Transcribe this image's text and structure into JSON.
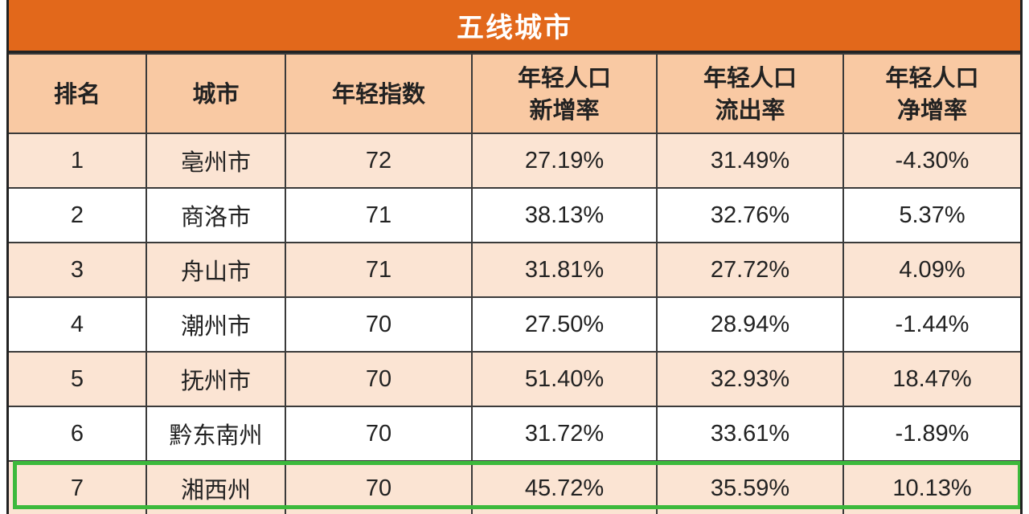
{
  "title": "五线城市",
  "headers": {
    "rank": "排名",
    "city": "城市",
    "index": "年轻指数",
    "new_rate_line1": "年轻人口",
    "new_rate_line2": "新增率",
    "outflow_line1": "年轻人口",
    "outflow_line2": "流出率",
    "net_line1": "年轻人口",
    "net_line2": "净增率"
  },
  "rows": [
    {
      "rank": "1",
      "city": "亳州市",
      "index": "72",
      "new_rate": "27.19%",
      "outflow": "31.49%",
      "net": "-4.30%"
    },
    {
      "rank": "2",
      "city": "商洛市",
      "index": "71",
      "new_rate": "38.13%",
      "outflow": "32.76%",
      "net": "5.37%"
    },
    {
      "rank": "3",
      "city": "舟山市",
      "index": "71",
      "new_rate": "31.81%",
      "outflow": "27.72%",
      "net": "4.09%"
    },
    {
      "rank": "4",
      "city": "潮州市",
      "index": "70",
      "new_rate": "27.50%",
      "outflow": "28.94%",
      "net": "-1.44%"
    },
    {
      "rank": "5",
      "city": "抚州市",
      "index": "70",
      "new_rate": "51.40%",
      "outflow": "32.93%",
      "net": "18.47%"
    },
    {
      "rank": "6",
      "city": "黔东南州",
      "index": "70",
      "new_rate": "31.72%",
      "outflow": "33.61%",
      "net": "-1.89%"
    },
    {
      "rank": "7",
      "city": "湘西州",
      "index": "70",
      "new_rate": "45.72%",
      "outflow": "35.59%",
      "net": "10.13%"
    }
  ],
  "colors": {
    "title_bg": "#e2681b",
    "header_bg": "#f9c9a3",
    "odd_row_bg": "#fbe4d3",
    "even_row_bg": "#ffffff",
    "highlight_border": "#3cb93c"
  }
}
